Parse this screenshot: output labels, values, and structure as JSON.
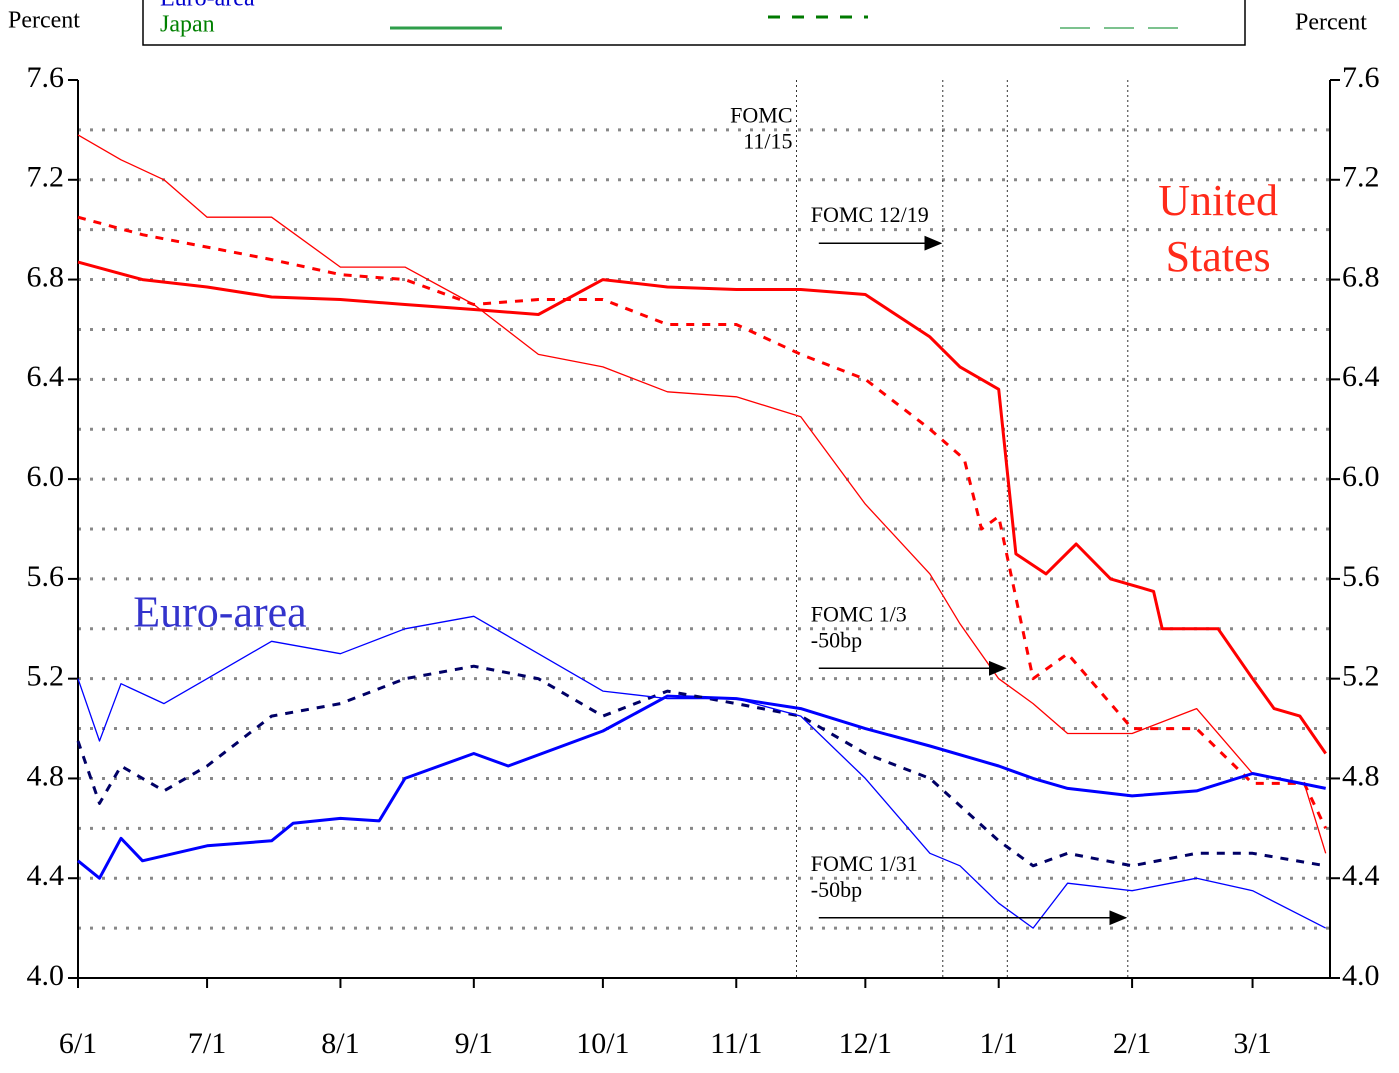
{
  "chart_data": {
    "type": "line",
    "y_axis_label": "Percent",
    "y2_axis_label": "Percent",
    "legend": {
      "rows": [
        "Euro-area",
        "Japan"
      ],
      "color": "#008000"
    },
    "xlim": [
      0,
      291
    ],
    "xticks": [
      {
        "value": 0,
        "label": "6/1"
      },
      {
        "value": 30,
        "label": "7/1"
      },
      {
        "value": 61,
        "label": "8/1"
      },
      {
        "value": 92,
        "label": "9/1"
      },
      {
        "value": 122,
        "label": "10/1"
      },
      {
        "value": 153,
        "label": "11/1"
      },
      {
        "value": 183,
        "label": "12/1"
      },
      {
        "value": 214,
        "label": "1/1"
      },
      {
        "value": 245,
        "label": "2/1"
      },
      {
        "value": 273,
        "label": "3/1"
      }
    ],
    "ylim": [
      4,
      7.6
    ],
    "yticks": [
      {
        "value": 4,
        "label": "4.0"
      },
      4.4,
      4.8,
      5.2,
      5.6,
      {
        "value": 6,
        "label": "6.0"
      },
      6.4,
      6.8,
      7.2,
      7.6
    ],
    "y2lim": [
      4,
      7.6
    ],
    "y2ticks": [
      {
        "value": 4,
        "label": "4.0"
      },
      4.4,
      4.8,
      5.2,
      5.6,
      {
        "value": 6,
        "label": "6.0"
      },
      6.4,
      6.8,
      7.2,
      7.6
    ],
    "ygrid": [
      4.2,
      4.4,
      4.6,
      4.8,
      5,
      5.2,
      5.4,
      5.6,
      5.8,
      6,
      6.2,
      6.4,
      6.6,
      6.8,
      7,
      7.2,
      7.4
    ],
    "event_lines": [
      167,
      201,
      216,
      244
    ],
    "annotations": [
      {
        "x": 167,
        "lines": [
          "FOMC",
          "11/15"
        ],
        "y": 7.45,
        "arrow_to": null
      },
      {
        "x": 168,
        "lines": [
          "FOMC 12/19"
        ],
        "y": 7.05,
        "arrow_to": 201
      },
      {
        "x": 168,
        "lines": [
          "FOMC 1/3",
          "-50bp"
        ],
        "y": 5.45,
        "arrow_to": 216
      },
      {
        "x": 168,
        "lines": [
          "FOMC 1/31",
          "-50bp"
        ],
        "y": 4.45,
        "arrow_to": 244
      }
    ],
    "region_labels": [
      {
        "lines": [
          "United",
          "States"
        ],
        "color": "#ff2a1a",
        "x": 265,
        "y": 7.1
      },
      {
        "lines": [
          "Euro-area"
        ],
        "color": "#3333cc",
        "x": 33,
        "y": 5.45
      }
    ],
    "series": [
      {
        "color": "#ff0000",
        "width": 3,
        "dash": "none",
        "x": [
          0,
          15,
          30,
          45,
          61,
          76,
          92,
          107,
          122,
          137,
          153,
          168,
          183,
          198,
          205,
          214,
          218,
          225,
          232,
          240,
          250,
          252,
          265,
          273,
          278,
          284,
          290
        ],
        "values": [
          6.87,
          6.8,
          6.77,
          6.73,
          6.72,
          6.7,
          6.68,
          6.66,
          6.8,
          6.77,
          6.76,
          6.76,
          6.74,
          6.57,
          6.45,
          6.36,
          5.7,
          5.62,
          5.74,
          5.6,
          5.55,
          5.4,
          5.4,
          5.2,
          5.08,
          5.05,
          4.9
        ]
      },
      {
        "color": "#ff0000",
        "width": 3,
        "dash": "8 8",
        "x": [
          0,
          15,
          30,
          45,
          61,
          76,
          92,
          107,
          122,
          137,
          153,
          168,
          183,
          198,
          206,
          210,
          214,
          222,
          230,
          245,
          260,
          273,
          285,
          290
        ],
        "values": [
          7.05,
          6.98,
          6.93,
          6.88,
          6.82,
          6.8,
          6.7,
          6.72,
          6.72,
          6.62,
          6.62,
          6.5,
          6.4,
          6.2,
          6.08,
          5.8,
          5.85,
          5.2,
          5.3,
          5,
          5,
          4.78,
          4.78,
          4.6
        ]
      },
      {
        "color": "#ff0000",
        "width": 1.3,
        "dash": "none",
        "x": [
          0,
          10,
          20,
          30,
          45,
          61,
          76,
          92,
          107,
          122,
          137,
          153,
          168,
          183,
          198,
          205,
          214,
          222,
          230,
          245,
          260,
          273,
          285,
          290
        ],
        "values": [
          7.38,
          7.28,
          7.2,
          7.05,
          7.05,
          6.85,
          6.85,
          6.7,
          6.5,
          6.45,
          6.35,
          6.33,
          6.25,
          5.9,
          5.62,
          5.42,
          5.2,
          5.1,
          4.98,
          4.98,
          5.08,
          4.82,
          4.78,
          4.5
        ]
      },
      {
        "color": "#0000ff",
        "width": 3,
        "dash": "none",
        "x": [
          0,
          5,
          10,
          15,
          30,
          45,
          50,
          61,
          70,
          76,
          92,
          100,
          122,
          137,
          153,
          168,
          183,
          198,
          214,
          222,
          230,
          245,
          260,
          273,
          290
        ],
        "values": [
          4.47,
          4.4,
          4.56,
          4.47,
          4.53,
          4.55,
          4.62,
          4.64,
          4.63,
          4.8,
          4.9,
          4.85,
          4.99,
          5.13,
          5.12,
          5.08,
          5,
          4.93,
          4.85,
          4.8,
          4.76,
          4.73,
          4.75,
          4.82,
          4.76
        ]
      },
      {
        "color": "#000066",
        "width": 3,
        "dash": "8 8",
        "x": [
          0,
          5,
          10,
          20,
          30,
          45,
          61,
          76,
          92,
          107,
          122,
          137,
          153,
          168,
          183,
          198,
          214,
          222,
          230,
          245,
          260,
          273,
          290
        ],
        "values": [
          4.95,
          4.7,
          4.85,
          4.75,
          4.85,
          5.05,
          5.1,
          5.2,
          5.25,
          5.2,
          5.05,
          5.15,
          5.1,
          5.05,
          4.9,
          4.8,
          4.55,
          4.45,
          4.5,
          4.45,
          4.5,
          4.5,
          4.45
        ]
      },
      {
        "color": "#0000ff",
        "width": 1.3,
        "dash": "none",
        "x": [
          0,
          5,
          10,
          20,
          30,
          45,
          61,
          76,
          92,
          107,
          122,
          137,
          153,
          168,
          183,
          198,
          205,
          214,
          222,
          230,
          245,
          260,
          273,
          290
        ],
        "values": [
          5.2,
          4.95,
          5.18,
          5.1,
          5.2,
          5.35,
          5.3,
          5.4,
          5.45,
          5.3,
          5.15,
          5.12,
          5.12,
          5.05,
          4.8,
          4.5,
          4.45,
          4.3,
          4.2,
          4.38,
          4.35,
          4.4,
          4.35,
          4.2
        ]
      }
    ]
  }
}
